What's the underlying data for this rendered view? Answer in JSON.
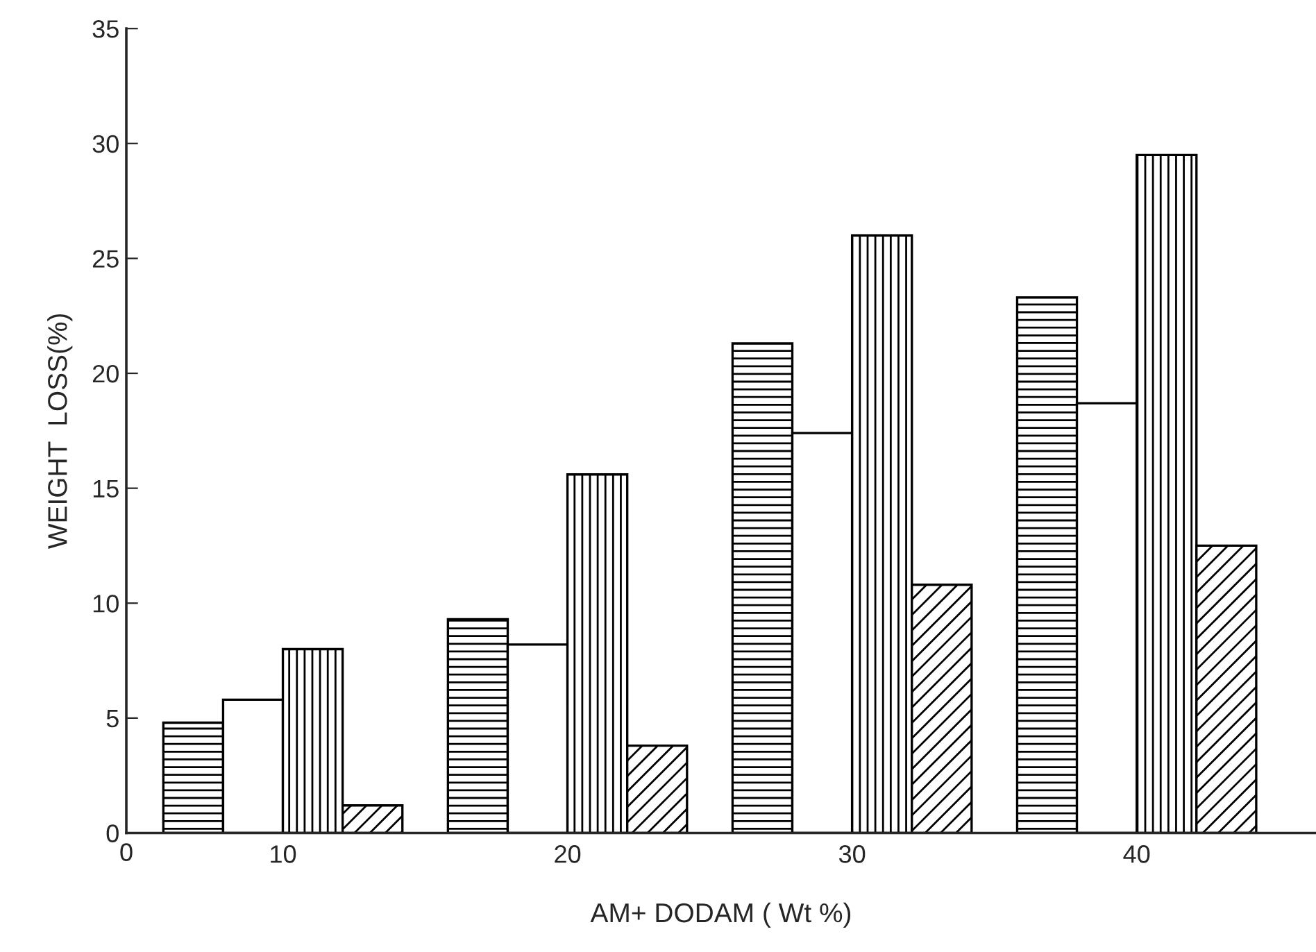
{
  "chart_data": {
    "type": "bar",
    "xlabel": "AM+ DODAM ( Wt %)",
    "ylabel": "WEIGHT  LOSS(%)",
    "categories": [
      "10",
      "20",
      "30",
      "40"
    ],
    "series": [
      {
        "color": "#000000",
        "values": [
          4.8,
          9.3,
          21.3,
          23.3
        ]
      },
      {
        "color": "#ffffff",
        "values": [
          5.8,
          8.2,
          17.4,
          18.7
        ]
      },
      {
        "color": "#000000",
        "values": [
          8.0,
          15.6,
          26.0,
          29.5
        ]
      },
      {
        "color": "#000000",
        "values": [
          1.2,
          3.8,
          10.8,
          12.5
        ]
      }
    ],
    "ylim": [
      0,
      35
    ],
    "yticks": [
      0,
      5,
      10,
      15,
      20,
      25,
      30,
      35
    ],
    "annotations": [
      "0"
    ],
    "grid": false,
    "legend": false
  }
}
